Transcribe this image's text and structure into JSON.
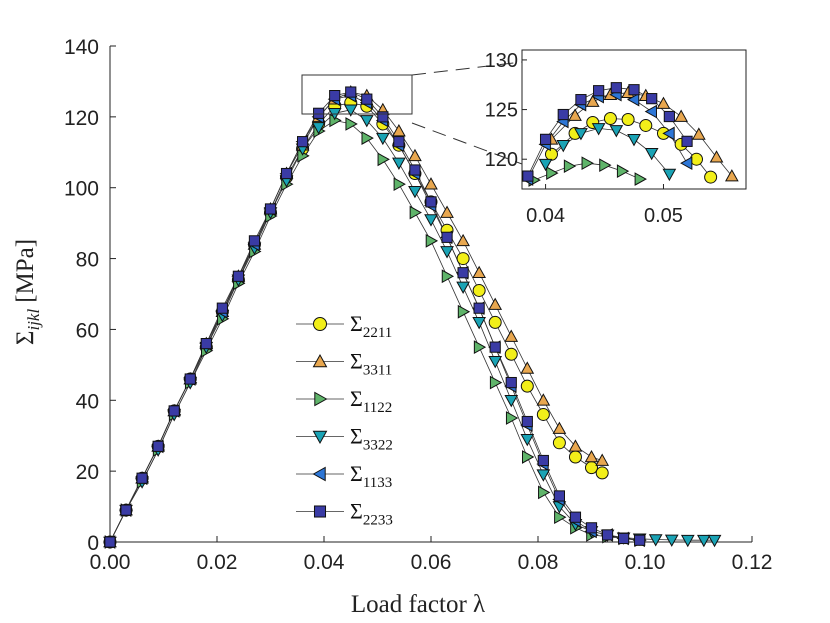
{
  "chart_data": {
    "type": "line",
    "title": "",
    "xlabel": "Load factor λ",
    "ylabel_symbol": "Σ",
    "ylabel_sub": "ijkl",
    "ylabel_unit": "[MPa]",
    "xlim": [
      0,
      0.12
    ],
    "ylim": [
      0,
      140
    ],
    "xticks": [
      "0.00",
      "0.02",
      "0.04",
      "0.06",
      "0.08",
      "0.10",
      "0.12"
    ],
    "yticks": [
      "0",
      "20",
      "40",
      "60",
      "80",
      "100",
      "120",
      "140"
    ],
    "legend_position": "center",
    "series": [
      {
        "name": "Σ2211",
        "sub": "2211",
        "marker": "circle",
        "color": "#f2ef19",
        "x": [
          0,
          0.003,
          0.006,
          0.009,
          0.012,
          0.015,
          0.018,
          0.021,
          0.024,
          0.027,
          0.03,
          0.033,
          0.036,
          0.039,
          0.042,
          0.045,
          0.048,
          0.051,
          0.054,
          0.057,
          0.06,
          0.063,
          0.066,
          0.069,
          0.072,
          0.075,
          0.078,
          0.081,
          0.084,
          0.087,
          0.09,
          0.092
        ],
        "y": [
          0,
          9,
          18,
          27,
          37,
          46,
          55,
          65,
          74,
          84,
          93,
          103,
          111,
          118,
          123,
          124,
          123,
          118,
          112,
          104,
          96,
          88,
          80,
          71,
          62,
          53,
          44,
          36,
          28,
          24,
          21,
          19.5
        ]
      },
      {
        "name": "Σ3311",
        "sub": "3311",
        "marker": "triangle-up",
        "color": "#e8a74f",
        "x": [
          0,
          0.003,
          0.006,
          0.009,
          0.012,
          0.015,
          0.018,
          0.021,
          0.024,
          0.027,
          0.03,
          0.033,
          0.036,
          0.039,
          0.042,
          0.045,
          0.048,
          0.051,
          0.054,
          0.057,
          0.06,
          0.063,
          0.066,
          0.069,
          0.072,
          0.075,
          0.078,
          0.081,
          0.084,
          0.087,
          0.09,
          0.092
        ],
        "y": [
          0,
          9,
          18,
          27,
          37,
          46,
          56,
          65,
          75,
          84,
          94,
          104,
          112,
          120,
          125,
          127,
          126,
          122,
          116,
          109,
          101,
          93,
          85,
          76,
          67,
          58,
          49,
          40,
          32,
          27,
          24,
          23
        ]
      },
      {
        "name": "Σ1122",
        "sub": "1122",
        "marker": "triangle-right",
        "color": "#5fb46a",
        "x": [
          0,
          0.003,
          0.006,
          0.009,
          0.012,
          0.015,
          0.018,
          0.021,
          0.024,
          0.027,
          0.03,
          0.033,
          0.036,
          0.039,
          0.042,
          0.045,
          0.048,
          0.051,
          0.054,
          0.057,
          0.06,
          0.063,
          0.066,
          0.069,
          0.072,
          0.075,
          0.078,
          0.081,
          0.084,
          0.087,
          0.09,
          0.093,
          0.096,
          0.099
        ],
        "y": [
          0,
          9,
          17,
          26,
          36,
          45,
          54,
          63,
          73,
          82,
          92,
          101,
          109,
          116,
          119,
          118,
          114,
          108,
          101,
          93,
          85,
          75,
          65,
          55,
          45,
          35,
          24,
          14,
          7,
          4,
          2,
          1.5,
          1,
          0.5
        ]
      },
      {
        "name": "Σ3322",
        "sub": "3322",
        "marker": "triangle-down",
        "color": "#1aa3b5",
        "x": [
          0,
          0.003,
          0.006,
          0.009,
          0.012,
          0.015,
          0.018,
          0.021,
          0.024,
          0.027,
          0.03,
          0.033,
          0.036,
          0.039,
          0.042,
          0.045,
          0.048,
          0.051,
          0.054,
          0.057,
          0.06,
          0.063,
          0.066,
          0.069,
          0.072,
          0.075,
          0.078,
          0.081,
          0.084,
          0.087,
          0.09,
          0.093,
          0.096,
          0.099,
          0.102,
          0.105,
          0.108,
          0.111,
          0.113
        ],
        "y": [
          0,
          9,
          17,
          26,
          36,
          45,
          55,
          64,
          74,
          83,
          93,
          102,
          111,
          117,
          121,
          122,
          119,
          114,
          107,
          99,
          91,
          82,
          72,
          62,
          51,
          40,
          29,
          19,
          10,
          5,
          3,
          2,
          1.2,
          0.9,
          0.7,
          0.6,
          0.5,
          0.5,
          0.5
        ]
      },
      {
        "name": "Σ1133",
        "sub": "1133",
        "marker": "triangle-left",
        "color": "#2d76d6",
        "x": [
          0,
          0.003,
          0.006,
          0.009,
          0.012,
          0.015,
          0.018,
          0.021,
          0.024,
          0.027,
          0.03,
          0.033,
          0.036,
          0.039,
          0.042,
          0.045,
          0.048,
          0.051,
          0.054,
          0.057,
          0.06,
          0.063,
          0.066,
          0.069,
          0.072,
          0.075,
          0.078,
          0.081,
          0.084,
          0.087,
          0.09,
          0.093,
          0.096,
          0.099
        ],
        "y": [
          0,
          9,
          18,
          27,
          37,
          46,
          56,
          65,
          75,
          84,
          94,
          104,
          113,
          120,
          125,
          126,
          124,
          119,
          112,
          104,
          95,
          86,
          76,
          66,
          55,
          44,
          33,
          22,
          12,
          6,
          3,
          2,
          1,
          0.5
        ]
      },
      {
        "name": "Σ2233",
        "sub": "2233",
        "marker": "square",
        "color": "#3a3ba5",
        "x": [
          0,
          0.003,
          0.006,
          0.009,
          0.012,
          0.015,
          0.018,
          0.021,
          0.024,
          0.027,
          0.03,
          0.033,
          0.036,
          0.039,
          0.042,
          0.045,
          0.048,
          0.051,
          0.054,
          0.057,
          0.06,
          0.063,
          0.066,
          0.069,
          0.072,
          0.075,
          0.078,
          0.081,
          0.084,
          0.087,
          0.09,
          0.093,
          0.096,
          0.099
        ],
        "y": [
          0,
          9,
          18,
          27,
          37,
          46,
          56,
          66,
          75,
          85,
          94,
          104,
          113,
          121,
          126,
          127,
          125,
          120,
          113,
          105,
          96,
          86,
          76,
          66,
          55,
          45,
          34,
          23,
          13,
          7,
          4,
          2,
          1,
          0.5
        ]
      }
    ],
    "inset": {
      "xlim": [
        0.038,
        0.057
      ],
      "ylim": [
        117,
        131
      ],
      "xticks": [
        "0.04",
        "0.05"
      ],
      "yticks": [
        "120",
        "125",
        "130"
      ],
      "series": [
        {
          "x": [
            0.0405,
            0.0425,
            0.044,
            0.0455,
            0.047,
            0.0485,
            0.05,
            0.0515,
            0.0528,
            0.054
          ],
          "y": [
            120.5,
            122.6,
            123.7,
            124.1,
            124.0,
            123.4,
            122.6,
            121.5,
            120.0,
            118.2
          ]
        },
        {
          "x": [
            0.0405,
            0.0425,
            0.044,
            0.0455,
            0.047,
            0.0485,
            0.05,
            0.0515,
            0.053,
            0.0545,
            0.0558
          ],
          "y": [
            122.0,
            124.4,
            125.8,
            126.5,
            126.7,
            126.4,
            125.6,
            124.3,
            122.5,
            120.2,
            118.3
          ]
        },
        {
          "x": [
            0.039,
            0.0405,
            0.042,
            0.0435,
            0.045,
            0.0465,
            0.048
          ],
          "y": [
            117.9,
            118.6,
            119.3,
            119.6,
            119.4,
            118.8,
            118.0
          ]
        },
        {
          "x": [
            0.04,
            0.0415,
            0.043,
            0.0445,
            0.046,
            0.0475,
            0.049,
            0.0505
          ],
          "y": [
            119.5,
            121.4,
            122.6,
            123.1,
            122.9,
            122.0,
            120.6,
            118.5
          ]
        },
        {
          "x": [
            0.0385,
            0.04,
            0.0415,
            0.043,
            0.0445,
            0.046,
            0.0475,
            0.049,
            0.0505,
            0.052
          ],
          "y": [
            118.0,
            121.5,
            123.8,
            125.5,
            126.3,
            126.5,
            126.0,
            124.8,
            122.6,
            119.6
          ]
        },
        {
          "x": [
            0.0385,
            0.04,
            0.0415,
            0.043,
            0.0445,
            0.046,
            0.0475,
            0.049,
            0.0505,
            0.052
          ],
          "y": [
            118.3,
            122.0,
            124.5,
            126.0,
            126.9,
            127.2,
            127.0,
            126.1,
            124.3,
            121.8
          ]
        }
      ]
    }
  }
}
